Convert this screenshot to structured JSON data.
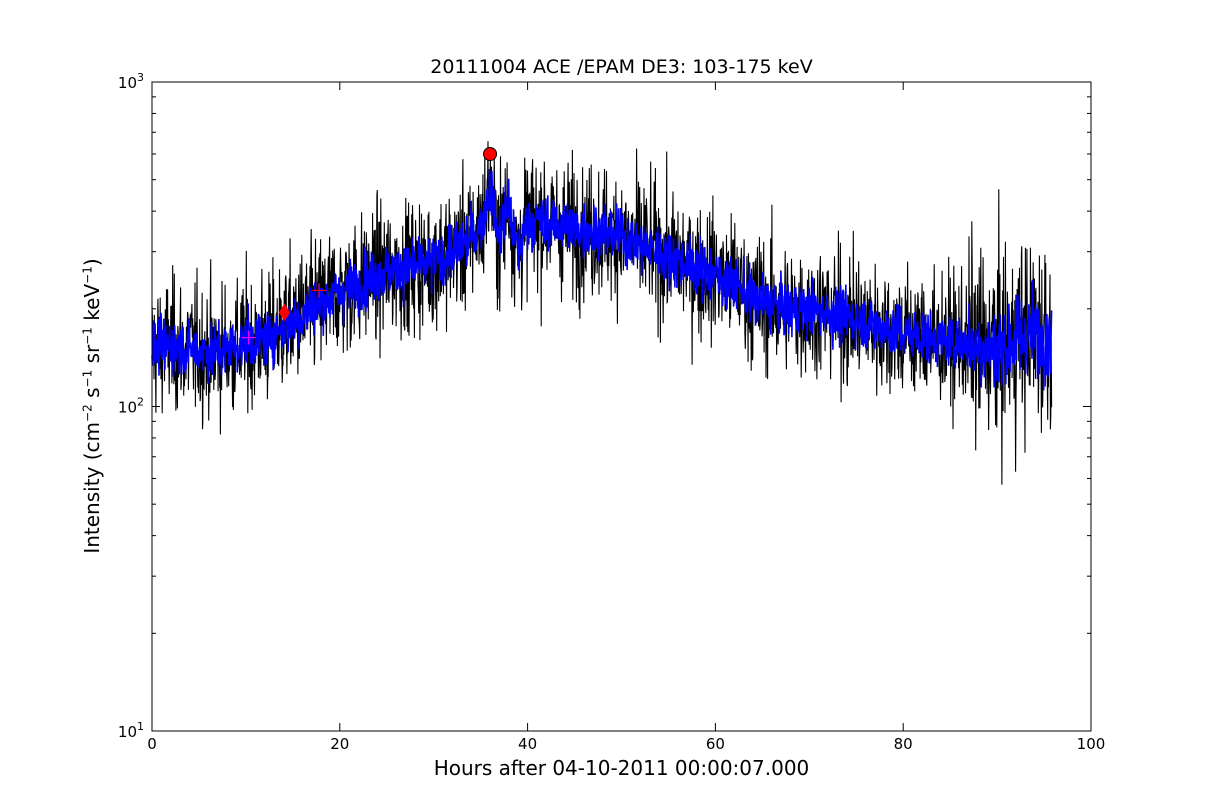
{
  "chart_data": {
    "type": "line",
    "title": "20111004 ACE /EPAM DE3: 103-175 keV",
    "xlabel": "Hours after 04-10-2011 00:00:07.000",
    "ylabel": {
      "base": "Intensity (cm",
      "p1": "−2",
      "a": " s",
      "p2": "−1",
      "b": " sr",
      "p3": "−1",
      "c": " keV",
      "p4": "−1",
      "end": ")"
    },
    "xlim": [
      0,
      100
    ],
    "ylim": [
      10,
      1000
    ],
    "yscale": "log",
    "grid": false,
    "x_ticks": [
      0,
      20,
      40,
      60,
      80,
      100
    ],
    "x_tick_labels": [
      "0",
      "20",
      "40",
      "60",
      "80",
      "100"
    ],
    "y_ticks": [
      10,
      100,
      1000
    ],
    "y_tick_labels": [
      {
        "base": "10",
        "exp": "1"
      },
      {
        "base": "10",
        "exp": "2"
      },
      {
        "base": "10",
        "exp": "3"
      }
    ],
    "series": [
      {
        "kind": "raw",
        "color": "#000000",
        "envelope_x": [
          0,
          2,
          5,
          8,
          10,
          12,
          14,
          16,
          18,
          20,
          22,
          24,
          26,
          28,
          30,
          32,
          33,
          34,
          35,
          35.5,
          36,
          36.5,
          37,
          37.5,
          38,
          38.5,
          39,
          40,
          42,
          45,
          48,
          50,
          52,
          55,
          58,
          60,
          62,
          64,
          66,
          68,
          70,
          72,
          75,
          78,
          80,
          82,
          84,
          86,
          88,
          90,
          92,
          94,
          95.8
        ],
        "envelope_y": [
          150,
          155,
          148,
          150,
          158,
          162,
          175,
          190,
          210,
          225,
          240,
          255,
          262,
          270,
          280,
          300,
          315,
          330,
          360,
          400,
          480,
          380,
          330,
          380,
          420,
          340,
          300,
          375,
          370,
          355,
          345,
          335,
          315,
          290,
          270,
          255,
          238,
          215,
          205,
          200,
          198,
          195,
          185,
          175,
          168,
          165,
          160,
          158,
          155,
          150,
          160,
          170,
          165
        ]
      },
      {
        "kind": "smoothed",
        "color": "#0000ff",
        "envelope_x": [
          0,
          2,
          5,
          8,
          10,
          12,
          14,
          16,
          18,
          20,
          22,
          24,
          26,
          28,
          30,
          32,
          33,
          34,
          35,
          35.5,
          36,
          36.5,
          37,
          37.5,
          38,
          38.5,
          39,
          40,
          42,
          45,
          48,
          50,
          52,
          55,
          58,
          60,
          62,
          64,
          66,
          68,
          70,
          72,
          75,
          78,
          80,
          82,
          84,
          86,
          88,
          90,
          92,
          94,
          95.8
        ],
        "envelope_y": [
          150,
          155,
          148,
          150,
          158,
          162,
          175,
          190,
          210,
          225,
          240,
          255,
          262,
          270,
          280,
          300,
          315,
          330,
          360,
          400,
          480,
          380,
          330,
          380,
          420,
          340,
          300,
          375,
          370,
          355,
          345,
          335,
          315,
          290,
          270,
          255,
          238,
          215,
          205,
          200,
          198,
          195,
          185,
          175,
          168,
          165,
          160,
          158,
          155,
          150,
          160,
          170,
          165
        ]
      }
    ],
    "markers": [
      {
        "shape": "circle",
        "x": 36.0,
        "y": 600,
        "color": "#ff0000"
      },
      {
        "shape": "diamond",
        "x": 14.1,
        "y": 195,
        "color": "#ff0000"
      },
      {
        "shape": "plus",
        "x": 10.3,
        "y": 163,
        "color": "#ff00ff"
      },
      {
        "shape": "plus",
        "x": 17.8,
        "y": 228,
        "color": "#ff0000"
      }
    ]
  }
}
